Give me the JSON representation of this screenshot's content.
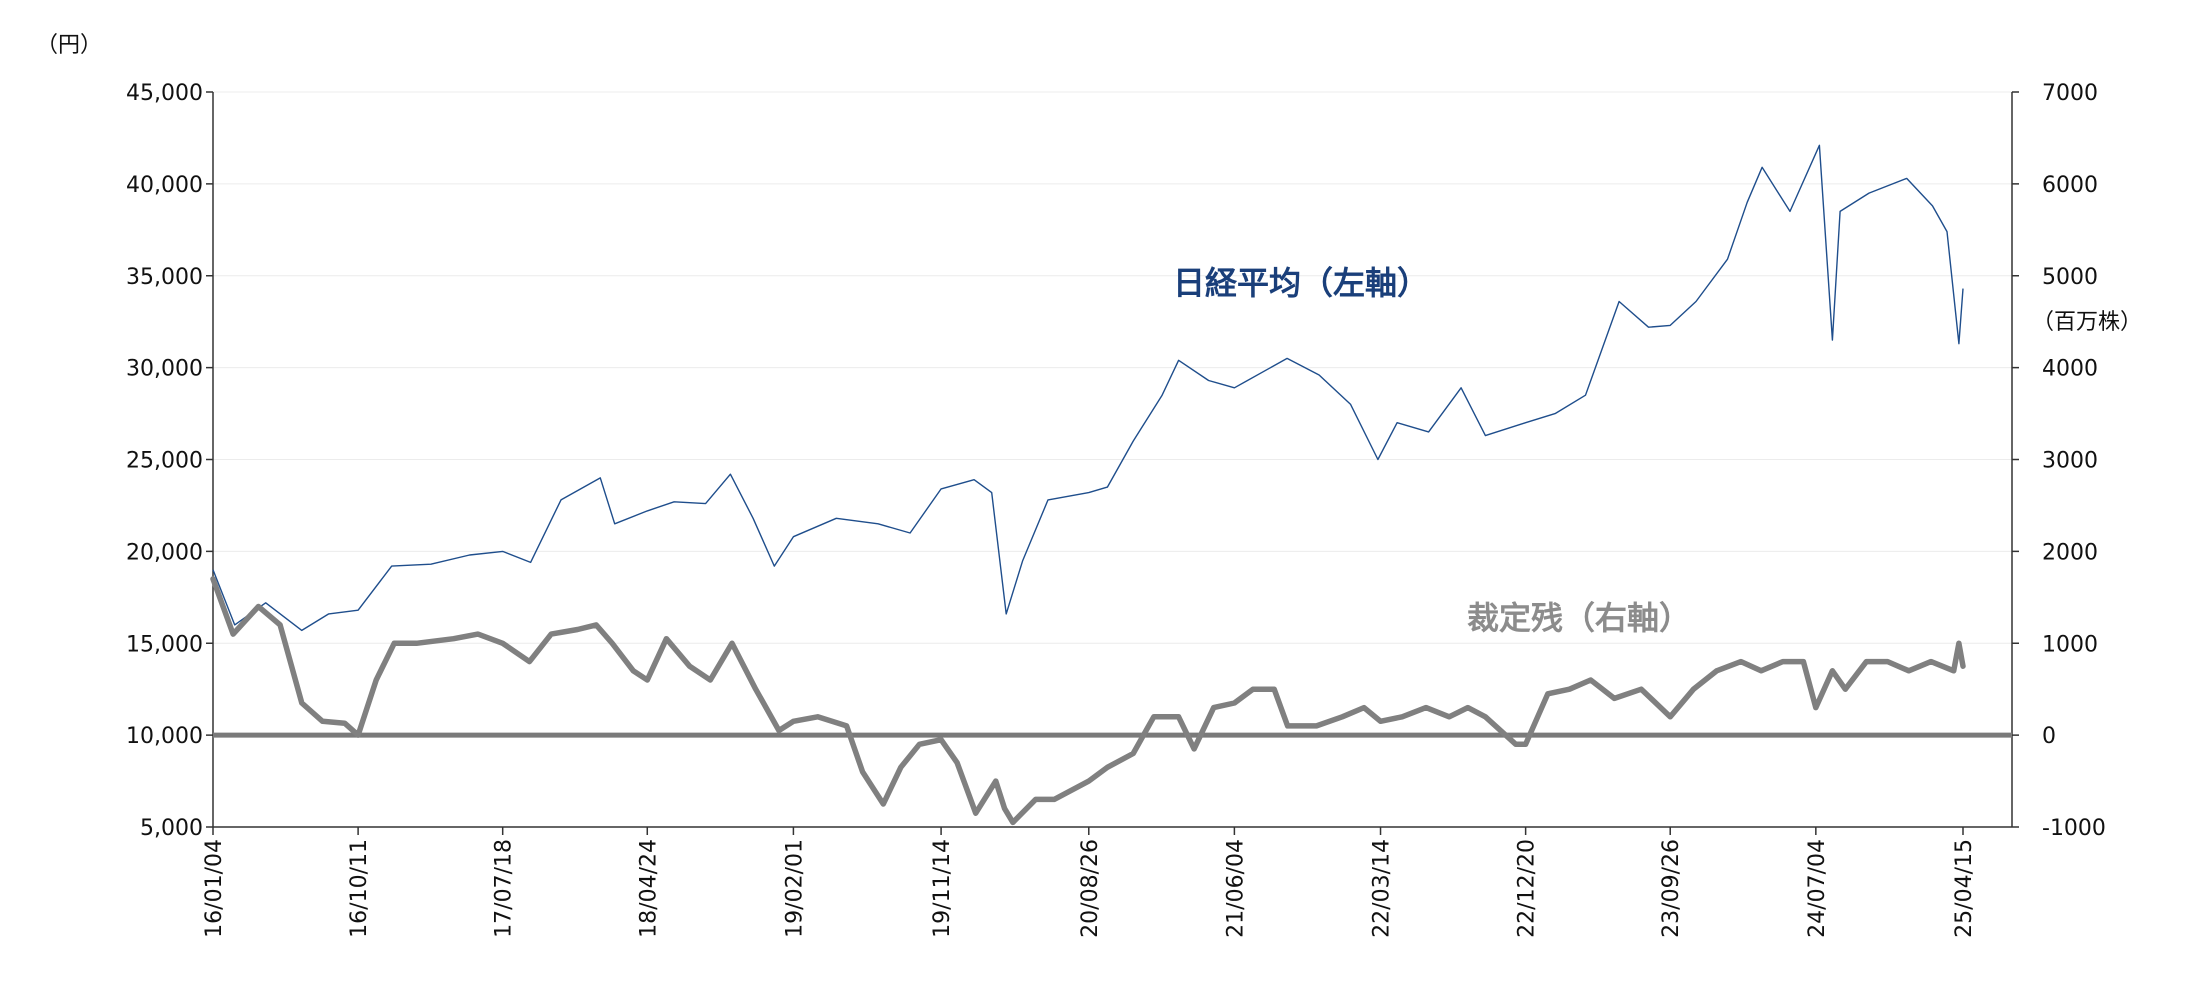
{
  "chart_data": {
    "type": "line",
    "left_axis_unit": "（円）",
    "right_axis_unit": "（百万株）",
    "y_left": {
      "min": 5000,
      "max": 45000,
      "ticks": [
        "45,000",
        "40,000",
        "35,000",
        "30,000",
        "25,000",
        "20,000",
        "15,000",
        "10,000",
        "5,000"
      ]
    },
    "y_right": {
      "min": -1000,
      "max": 7000,
      "ticks": [
        "7000",
        "6000",
        "5000",
        "4000",
        "3000",
        "2000",
        "1000",
        "0",
        "-1000"
      ]
    },
    "x_ticks": [
      "16/01/04",
      "16/10/11",
      "17/07/18",
      "18/04/24",
      "19/02/01",
      "19/11/14",
      "20/08/26",
      "21/06/04",
      "22/03/14",
      "22/12/20",
      "23/09/26",
      "24/07/04",
      "25/04/15"
    ],
    "zero_line_value": 0,
    "grid": true,
    "series": [
      {
        "name": "日経平均（左軸）",
        "axis": "left",
        "color": "#1f4e8c",
        "label_color": "#1a3f7a",
        "x": [
          "16/01/04",
          "16/02/15",
          "16/04/15",
          "16/06/24",
          "16/08/15",
          "16/10/11",
          "16/12/15",
          "17/03/01",
          "17/05/15",
          "17/07/18",
          "17/09/10",
          "17/11/08",
          "18/01/23",
          "18/02/20",
          "18/04/24",
          "18/06/15",
          "18/08/15",
          "18/10/02",
          "18/11/15",
          "18/12/26",
          "19/02/01",
          "19/04/25",
          "19/07/15",
          "19/09/15",
          "19/11/14",
          "20/01/17",
          "20/02/20",
          "20/03/19",
          "20/04/20",
          "20/06/08",
          "20/08/26",
          "20/10/01",
          "20/11/20",
          "21/01/15",
          "21/02/16",
          "21/04/15",
          "21/06/04",
          "21/09/14",
          "21/11/15",
          "22/01/15",
          "22/03/09",
          "22/04/15",
          "22/06/15",
          "22/08/17",
          "22/10/03",
          "22/12/20",
          "23/02/15",
          "23/04/15",
          "23/06/19",
          "23/08/15",
          "23/09/26",
          "23/11/15",
          "24/01/15",
          "24/02/22",
          "24/03/22",
          "24/05/15",
          "24/07/11",
          "24/08/05",
          "24/08/20",
          "24/10/15",
          "24/12/27",
          "25/02/15",
          "25/03/15",
          "25/04/07",
          "25/04/15"
        ],
        "y": [
          19000,
          16000,
          17200,
          15700,
          16600,
          16800,
          19200,
          19300,
          19800,
          20000,
          19400,
          22800,
          24000,
          21500,
          22200,
          22700,
          22600,
          24200,
          21800,
          19200,
          20800,
          21800,
          21500,
          21000,
          23400,
          23900,
          23200,
          16600,
          19500,
          22800,
          23200,
          23500,
          26000,
          28500,
          30400,
          29300,
          28900,
          30500,
          29600,
          28000,
          25000,
          27000,
          26500,
          28900,
          26300,
          27000,
          27500,
          28500,
          33600,
          32200,
          32300,
          33600,
          35900,
          39000,
          40900,
          38500,
          42100,
          31500,
          38500,
          39500,
          40300,
          38800,
          37400,
          31300,
          34300
        ]
      },
      {
        "name": "裁定残（右軸）",
        "axis": "right",
        "color": "#808080",
        "label_color": "#8c8c8c",
        "x": [
          "16/01/04",
          "16/02/12",
          "16/04/01",
          "16/05/13",
          "16/06/24",
          "16/08/03",
          "16/09/15",
          "16/10/11",
          "16/11/15",
          "16/12/20",
          "17/02/01",
          "17/04/14",
          "17/05/31",
          "17/07/18",
          "17/09/08",
          "17/10/20",
          "17/12/10",
          "18/01/15",
          "18/02/15",
          "18/03/28",
          "18/04/24",
          "18/05/31",
          "18/07/15",
          "18/08/24",
          "18/10/05",
          "18/11/20",
          "19/01/04",
          "19/02/01",
          "19/03/20",
          "19/05/15",
          "19/06/15",
          "19/07/25",
          "19/08/28",
          "19/10/03",
          "19/11/14",
          "19/12/15",
          "20/01/20",
          "20/02/28",
          "20/03/16",
          "20/04/01",
          "20/05/15",
          "20/06/20",
          "20/08/26",
          "20/10/01",
          "20/11/20",
          "20/12/30",
          "21/02/16",
          "21/03/18",
          "21/04/25",
          "21/06/04",
          "21/07/10",
          "21/08/20",
          "21/09/15",
          "21/11/10",
          "21/12/30",
          "22/02/10",
          "22/03/14",
          "22/04/25",
          "22/06/10",
          "22/07/25",
          "22/08/30",
          "22/10/03",
          "22/12/01",
          "22/12/20",
          "23/02/01",
          "23/03/15",
          "23/04/25",
          "23/06/10",
          "23/08/01",
          "23/09/26",
          "23/11/10",
          "23/12/25",
          "24/02/10",
          "24/03/20",
          "24/05/01",
          "24/06/10",
          "24/07/04",
          "24/08/05",
          "24/08/30",
          "24/10/10",
          "24/11/20",
          "24/12/31",
          "25/02/12",
          "25/03/28",
          "25/04/07",
          "25/04/15"
        ],
        "y": [
          1700,
          1100,
          1400,
          1200,
          350,
          150,
          130,
          0,
          600,
          1000,
          1000,
          1050,
          1100,
          1000,
          800,
          1100,
          1150,
          1200,
          1000,
          700,
          600,
          1050,
          750,
          600,
          1000,
          500,
          50,
          150,
          200,
          100,
          -400,
          -750,
          -350,
          -100,
          -50,
          -300,
          -850,
          -500,
          -800,
          -950,
          -700,
          -700,
          -500,
          -350,
          -200,
          200,
          200,
          -150,
          300,
          350,
          500,
          500,
          100,
          100,
          200,
          300,
          150,
          200,
          300,
          200,
          300,
          200,
          -100,
          -100,
          450,
          500,
          600,
          400,
          500,
          200,
          500,
          700,
          800,
          700,
          800,
          800,
          300,
          700,
          500,
          800,
          800,
          700,
          800,
          700,
          1000,
          750
        ]
      }
    ]
  }
}
